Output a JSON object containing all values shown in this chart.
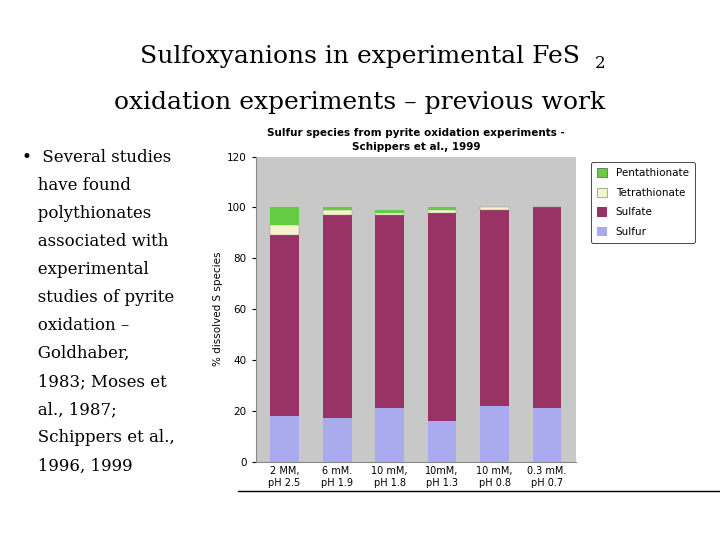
{
  "chart_title_line1": "Sulfur species from pyrite oxidation experiments -",
  "chart_title_line2": "Schippers et al., 1999",
  "ylabel": "% dissolved S species",
  "categories": [
    "2 MM,\npH 2.5",
    "6 mM.\npH 1.9",
    "10 mM,\npH 1.8",
    "10mM,\npH 1.3",
    "10 mM,\npH 0.8",
    "0.3 mM.\npH 0.7"
  ],
  "sulfur": [
    18,
    17,
    21,
    16,
    22,
    21
  ],
  "sulfate": [
    71,
    80,
    76,
    82,
    77,
    79
  ],
  "tetrathionate": [
    4,
    2,
    1,
    1,
    1,
    0
  ],
  "pentathionate": [
    7,
    1,
    1,
    1,
    0,
    0
  ],
  "ylim": [
    0,
    120
  ],
  "yticks": [
    0,
    20,
    40,
    60,
    80,
    100,
    120
  ],
  "color_sulfur": "#aaaaee",
  "color_sulfate": "#993366",
  "color_tetrathionate": "#f5f5cc",
  "color_pentathionate": "#66cc44",
  "chart_bg": "#c8c8c8",
  "background_color": "#ffffff",
  "bar_width": 0.55,
  "title_line1": "Sulfoxyanions in experimental FeS",
  "title_subscript": "2",
  "title_line2": "oxidation experiments – previous work",
  "bullet_lines": [
    "•  Several studies",
    "   have found",
    "   polythionates",
    "   associated with",
    "   experimental",
    "   studies of pyrite",
    "   oxidation –",
    "   Goldhaber,",
    "   1983; Moses et",
    "   al., 1987;",
    "   Schippers et al.,",
    "   1996, 1999"
  ]
}
